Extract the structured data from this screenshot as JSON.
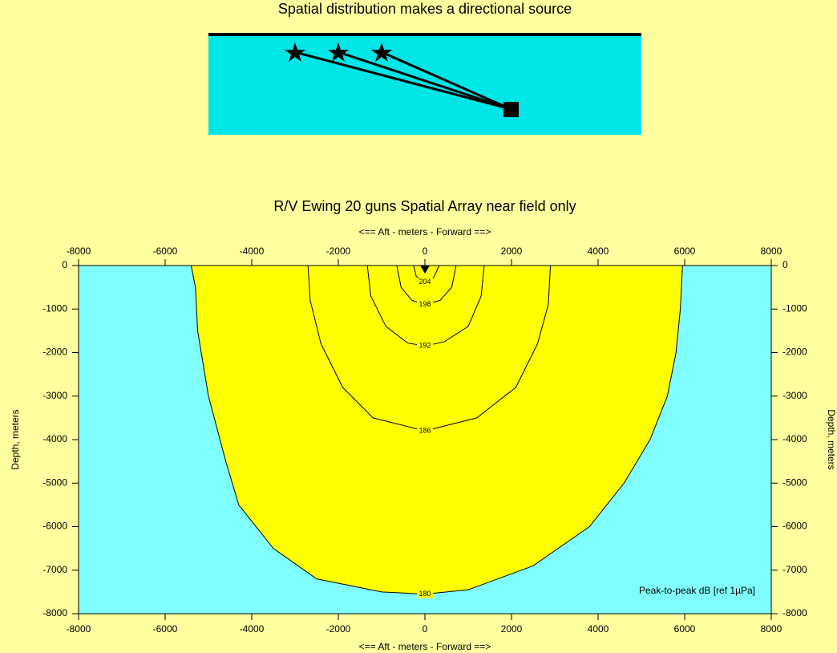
{
  "diagram": {
    "title": "Spatial distribution makes a directional source"
  },
  "chart_data": {
    "type": "contour",
    "title": "R/V Ewing 20 guns Spatial Array near field only",
    "xlabel": "<==   Aft   - meters - Forward ==>",
    "ylabel": "Depth, meters",
    "annotation": "Peak-to-peak dB [ref 1µPa]",
    "xlim": [
      -8000,
      8000
    ],
    "ylim": [
      -8000,
      0
    ],
    "xticks": [
      -8000,
      -6000,
      -4000,
      -2000,
      0,
      2000,
      4000,
      6000,
      8000
    ],
    "yticks": [
      0,
      -1000,
      -2000,
      -3000,
      -4000,
      -5000,
      -6000,
      -7000,
      -8000
    ],
    "background_color": "#80ffff",
    "fill_color": "#ffff00",
    "line_color": "#000000",
    "contours": [
      {
        "level": 180,
        "x": [
          -5400,
          -5300,
          -5250,
          -5000,
          -4600,
          -4300,
          -3500,
          -2500,
          -1000,
          0,
          1000,
          2500,
          3800,
          4600,
          5200,
          5600,
          5800,
          5900,
          5950
        ],
        "y": [
          0,
          -500,
          -1500,
          -3000,
          -4500,
          -5500,
          -6500,
          -7200,
          -7500,
          -7550,
          -7450,
          -6900,
          -6000,
          -5000,
          -4000,
          -3000,
          -2000,
          -1000,
          0
        ]
      },
      {
        "level": 186,
        "x": [
          -2700,
          -2650,
          -2400,
          -1900,
          -1200,
          0,
          1200,
          2100,
          2600,
          2850,
          2900
        ],
        "y": [
          0,
          -800,
          -1800,
          -2800,
          -3500,
          -3800,
          -3500,
          -2800,
          -1800,
          -900,
          0
        ]
      },
      {
        "level": 192,
        "x": [
          -1330,
          -1250,
          -900,
          -400,
          0,
          450,
          1000,
          1300,
          1370
        ],
        "y": [
          0,
          -700,
          -1400,
          -1780,
          -1850,
          -1750,
          -1400,
          -700,
          0
        ]
      },
      {
        "level": 198,
        "x": [
          -650,
          -550,
          -300,
          0,
          350,
          620,
          720
        ],
        "y": [
          0,
          -500,
          -800,
          -900,
          -800,
          -500,
          0
        ]
      },
      {
        "level": 204,
        "x": [
          -260,
          -200,
          0,
          200,
          330
        ],
        "y": [
          0,
          -250,
          -380,
          -280,
          0
        ]
      }
    ]
  }
}
